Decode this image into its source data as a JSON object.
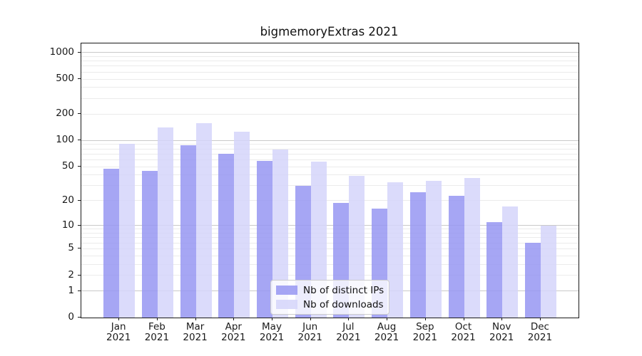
{
  "title": "bigmemoryExtras 2021",
  "chart_data": {
    "type": "bar",
    "title": "bigmemoryExtras 2021",
    "categories": [
      "Jan 2021",
      "Feb 2021",
      "Mar 2021",
      "Apr 2021",
      "May 2021",
      "Jun 2021",
      "Jul 2021",
      "Aug 2021",
      "Sep 2021",
      "Oct 2021",
      "Nov 2021",
      "Dec 2021"
    ],
    "x_tick_month_labels": [
      "Jan",
      "Feb",
      "Mar",
      "Apr",
      "May",
      "Jun",
      "Jul",
      "Aug",
      "Sep",
      "Oct",
      "Nov",
      "Dec"
    ],
    "x_tick_year_label": "2021",
    "series": [
      {
        "name": "Nb of distinct IPs",
        "color": "rgba(150,150,242,0.85)",
        "values": [
          47,
          45,
          89,
          70,
          58,
          30,
          19,
          16,
          25,
          23,
          11,
          6
        ]
      },
      {
        "name": "Nb of downloads",
        "color": "rgba(213,213,250,0.85)",
        "values": [
          92,
          141,
          158,
          125,
          79,
          57,
          39,
          33,
          34,
          37,
          17,
          10
        ]
      }
    ],
    "xlabel": "",
    "ylabel": "",
    "yscale": "log10(1+value), linear-anchored at 0",
    "ylim": [
      0,
      1265
    ],
    "y_tick_values": [
      1000,
      500,
      200,
      100,
      50,
      20,
      10,
      5,
      2,
      1,
      0
    ],
    "y_tick_labels": [
      "1000",
      "500",
      "200",
      "100",
      "50",
      "20",
      "10",
      "5",
      "2",
      "1",
      "0"
    ],
    "grid": {
      "on": true,
      "major_values": [
        1,
        10,
        100,
        1000
      ],
      "minor_values": [
        2,
        3,
        4,
        5,
        6,
        7,
        8,
        9,
        20,
        30,
        40,
        50,
        60,
        70,
        80,
        90,
        200,
        300,
        400,
        500,
        600,
        700,
        800,
        900
      ],
      "major_color": "#c9c9c9",
      "minor_color": "#ebebeb"
    },
    "legend": {
      "position": "lower center inside axes",
      "labels": [
        "Nb of distinct IPs",
        "Nb of downloads"
      ]
    }
  }
}
